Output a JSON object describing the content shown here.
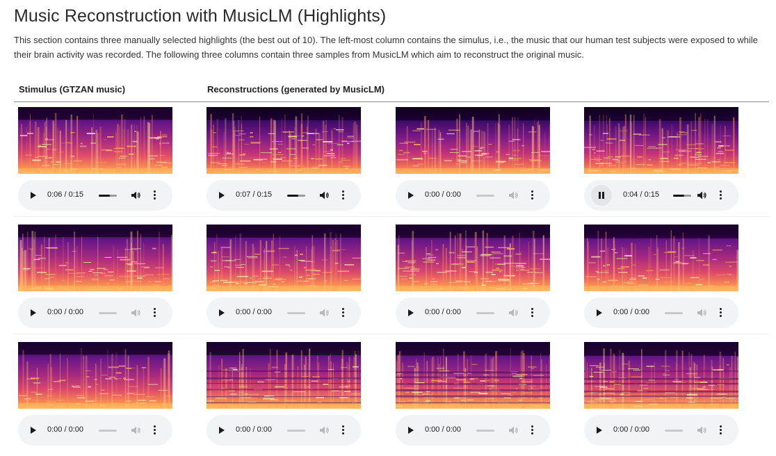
{
  "page": {
    "title": "Music Reconstruction with MusicLM (Highlights)",
    "description": "This section contains three manually selected highlights (the best out of 10). The left-most column contains the simulus, i.e., the music that our human test subjects were exposed to while their brain activity was recorded. The following three columns contain three samples from MusicLM which aim to reconstruct the original music."
  },
  "columns": {
    "stimulus_header": "Stimulus (GTZAN music)",
    "reconstructions_header": "Reconstructions (generated by MusicLM)"
  },
  "rows": [
    {
      "cells": [
        {
          "kind": "stimulus",
          "time": "0:06 / 0:15",
          "state": "paused",
          "progress": 0.4,
          "icon": "play-icon"
        },
        {
          "kind": "reconstruction",
          "time": "0:07 / 0:15",
          "state": "paused",
          "progress": 0.47,
          "icon": "play-icon"
        },
        {
          "kind": "reconstruction",
          "time": "0:00 / 0:00",
          "state": "empty",
          "progress": 0,
          "icon": "play-icon"
        },
        {
          "kind": "reconstruction",
          "time": "0:04 / 0:15",
          "state": "playing",
          "progress": 0.27,
          "icon": "pause-icon"
        }
      ]
    },
    {
      "cells": [
        {
          "kind": "stimulus",
          "time": "0:00 / 0:00",
          "state": "empty",
          "progress": 0,
          "icon": "play-icon"
        },
        {
          "kind": "reconstruction",
          "time": "0:00 / 0:00",
          "state": "empty",
          "progress": 0,
          "icon": "play-icon"
        },
        {
          "kind": "reconstruction",
          "time": "0:00 / 0:00",
          "state": "empty",
          "progress": 0,
          "icon": "play-icon"
        },
        {
          "kind": "reconstruction",
          "time": "0:00 / 0:00",
          "state": "empty",
          "progress": 0,
          "icon": "play-icon"
        }
      ]
    },
    {
      "cells": [
        {
          "kind": "stimulus",
          "time": "0:00 / 0:00",
          "state": "empty",
          "progress": 0,
          "icon": "play-icon"
        },
        {
          "kind": "reconstruction",
          "time": "0:00 / 0:00",
          "state": "empty",
          "progress": 0,
          "icon": "play-icon"
        },
        {
          "kind": "reconstruction",
          "time": "0:00 / 0:00",
          "state": "empty",
          "progress": 0,
          "icon": "play-icon"
        },
        {
          "kind": "reconstruction",
          "time": "0:00 / 0:00",
          "state": "empty",
          "progress": 0,
          "icon": "play-icon"
        }
      ]
    }
  ],
  "icons": {
    "play": "play-icon",
    "pause": "pause-icon",
    "volume": "volume-icon",
    "more": "more-options-icon",
    "spectrogram": "spectrogram-image"
  },
  "colors": {
    "player_bg": "#f1f3f4",
    "spectrogram_low": "#1e0036",
    "spectrogram_mid": "#b1266f",
    "spectrogram_high": "#ffd27a"
  }
}
